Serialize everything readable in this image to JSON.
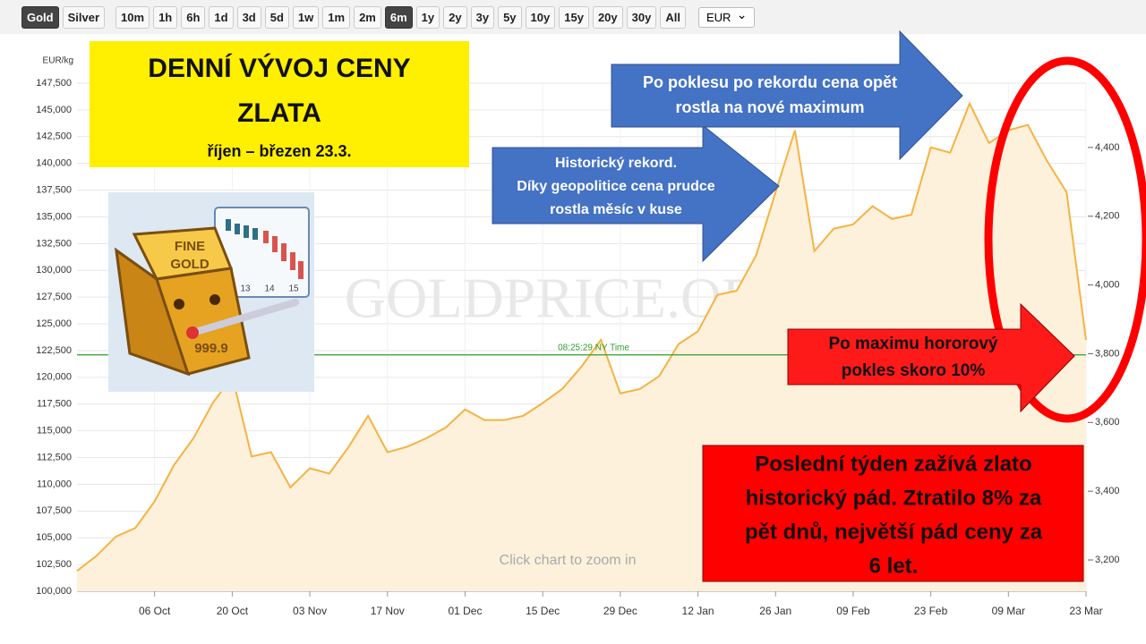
{
  "toolbar": {
    "metals": [
      "Gold",
      "Silver"
    ],
    "active_metal": "Gold",
    "ranges": [
      "10m",
      "1h",
      "6h",
      "1d",
      "3d",
      "5d",
      "1w",
      "1m",
      "2m",
      "6m",
      "1y",
      "2y",
      "3y",
      "5y",
      "10y",
      "15y",
      "20y",
      "30y",
      "All"
    ],
    "active_range": "6m",
    "currency": "EUR"
  },
  "chart_data": {
    "type": "area",
    "y_label": "EUR/kg",
    "color": "#f5b342",
    "fill": "#fdf1dc",
    "categories": [
      null,
      null,
      null,
      null,
      "06 Oct",
      null,
      null,
      null,
      "20 Oct",
      null,
      null,
      null,
      "03 Nov",
      null,
      null,
      null,
      "17 Nov",
      null,
      null,
      null,
      "01 Dec",
      null,
      null,
      null,
      "15 Dec",
      null,
      null,
      null,
      "29 Dec",
      null,
      null,
      null,
      "12 Jan",
      null,
      null,
      null,
      "26 Jan",
      null,
      null,
      null,
      "09 Feb",
      null,
      null,
      null,
      "23 Feb",
      null,
      null,
      null,
      "09 Mar",
      null,
      null,
      null,
      "23 Mar"
    ],
    "values": [
      101900,
      103300,
      105100,
      105900,
      108400,
      111800,
      114300,
      117600,
      120100,
      112600,
      113000,
      109700,
      111500,
      111000,
      113500,
      116400,
      113000,
      113500,
      114300,
      115300,
      117000,
      116000,
      116000,
      116400,
      117600,
      118900,
      121000,
      123500,
      118500,
      118900,
      120100,
      123100,
      124300,
      127700,
      128100,
      131400,
      137300,
      143100,
      131800,
      133900,
      134300,
      136000,
      134800,
      135200,
      141500,
      141000,
      145600,
      141900,
      143100,
      143600,
      140200,
      137300,
      123500
    ],
    "ylim": [
      100000,
      147500
    ],
    "yticks": [
      {
        "value": 100000,
        "label": "100,000"
      },
      {
        "value": 102500,
        "label": "102,500"
      },
      {
        "value": 105000,
        "label": "105,000"
      },
      {
        "value": 107500,
        "label": "107,500"
      },
      {
        "value": 110000,
        "label": "110,000"
      },
      {
        "value": 112500,
        "label": "112,500"
      },
      {
        "value": 115000,
        "label": "115,000"
      },
      {
        "value": 117500,
        "label": "117,500"
      },
      {
        "value": 120000,
        "label": "120,000"
      },
      {
        "value": 122500,
        "label": "122,500"
      },
      {
        "value": 125000,
        "label": "125,000"
      },
      {
        "value": 127500,
        "label": "127,500"
      },
      {
        "value": 130000,
        "label": "130,000"
      },
      {
        "value": 132500,
        "label": "132,500"
      },
      {
        "value": 135000,
        "label": "135,000"
      },
      {
        "value": 137500,
        "label": "137,500"
      },
      {
        "value": 140000,
        "label": "140,000"
      },
      {
        "value": 142500,
        "label": "142,500"
      },
      {
        "value": 145000,
        "label": "145,000"
      },
      {
        "value": 147500,
        "label": "147,500"
      }
    ],
    "y2lim": [
      3109,
      4587
    ],
    "y2ticks": [
      {
        "value": 3200,
        "label": "3,200"
      },
      {
        "value": 3400,
        "label": "3,400"
      },
      {
        "value": 3600,
        "label": "3,600"
      },
      {
        "value": 3800,
        "label": "3,800"
      },
      {
        "value": 4000,
        "label": "4,000"
      },
      {
        "value": 4200,
        "label": "4,200"
      },
      {
        "value": 4400,
        "label": "4,400"
      }
    ],
    "grid": true,
    "reference_line": 122100,
    "reference_color": "#2e9e2e",
    "time_label": "08:25:29 NY Time",
    "watermark": "GOLDPRICE.ORG",
    "hint": "Click chart to zoom in"
  },
  "annotations": {
    "title": [
      "DENNÍ VÝVOJ CENY",
      "ZLATA"
    ],
    "subtitle": "říjen – březen 23.3.",
    "blue_arrow_1": [
      "Historický rekord.",
      "Díky geopolitice cena prudce",
      "rostla měsíc v kuse"
    ],
    "blue_arrow_2": [
      "Po poklesu po rekordu cena opět",
      "rostla na nové maximum"
    ],
    "red_arrow": [
      "Po maximu hororový",
      "pokles skoro 10%"
    ],
    "red_box": [
      "Poslední týden zažívá zlato",
      "historický pád. Ztratilo 8% za",
      "pět dnů, největší pád ceny za",
      "6 let."
    ],
    "image_text": [
      "FINE",
      "GOLD",
      "999.9"
    ],
    "image_chart_labels": [
      "13",
      "14",
      "15"
    ]
  }
}
